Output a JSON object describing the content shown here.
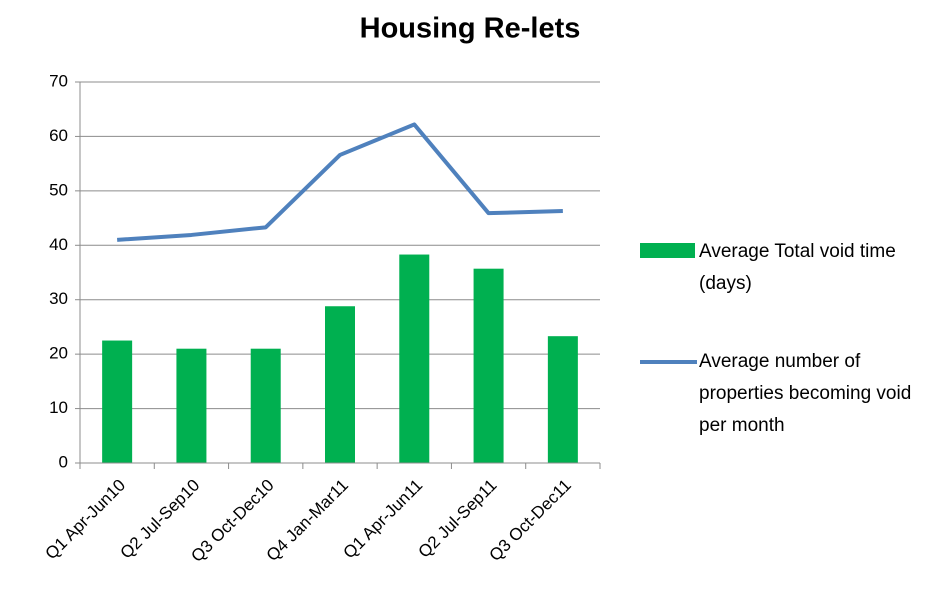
{
  "chart_data": {
    "type": "bar",
    "title": "Housing Re-lets",
    "categories": [
      "Q1 Apr-Jun10",
      "Q2 Jul-Sep10",
      "Q3 Oct-Dec10",
      "Q4 Jan-Mar11",
      "Q1 Apr-Jun11",
      "Q2 Jul-Sep11",
      "Q3 Oct-Dec11"
    ],
    "series": [
      {
        "name": "Average Total void time (days)",
        "type": "bar",
        "color": "#00b050",
        "values": [
          22.5,
          21,
          21,
          28.8,
          38.3,
          35.7,
          23.3
        ]
      },
      {
        "name": "Average number of properties becoming void per month",
        "type": "line",
        "color": "#4f81bd",
        "values": [
          41,
          41.9,
          43.3,
          56.6,
          62.2,
          45.9,
          46.3
        ]
      }
    ],
    "ylim": [
      0,
      70
    ],
    "yticks": [
      0,
      10,
      20,
      30,
      40,
      50,
      60,
      70
    ],
    "grid": true,
    "legend": "right"
  }
}
